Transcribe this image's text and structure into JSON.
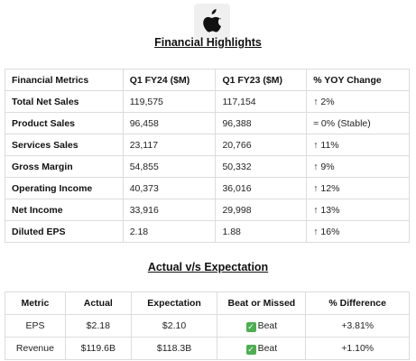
{
  "highlights": {
    "title": "Financial Highlights",
    "headers": [
      "Financial Metrics",
      "Q1 FY24 ($M)",
      "Q1 FY23 ($M)",
      "% YOY Change"
    ],
    "rows": [
      [
        "Total Net Sales",
        "119,575",
        "117,154",
        "↑ 2%"
      ],
      [
        "Product Sales",
        "96,458",
        "96,388",
        "≈ 0% (Stable)"
      ],
      [
        "Services Sales",
        "23,117",
        "20,766",
        "↑ 11%"
      ],
      [
        "Gross Margin",
        "54,855",
        "50,332",
        "↑ 9%"
      ],
      [
        "Operating Income",
        "40,373",
        "36,016",
        "↑ 12%"
      ],
      [
        "Net Income",
        "33,916",
        "29,998",
        "↑ 13%"
      ],
      [
        "Diluted EPS",
        "2.18",
        "1.88",
        "↑ 16%"
      ]
    ]
  },
  "expectation": {
    "title": "Actual v/s Expectation",
    "headers": [
      "Metric",
      "Actual",
      "Expectation",
      "Beat or Missed",
      "% Difference"
    ],
    "rows": [
      [
        "EPS",
        "$2.18",
        "$2.10",
        "Beat",
        "+3.81%"
      ],
      [
        "Revenue",
        "$119.6B",
        "$118.3B",
        "Beat",
        "+1.10%"
      ]
    ]
  }
}
